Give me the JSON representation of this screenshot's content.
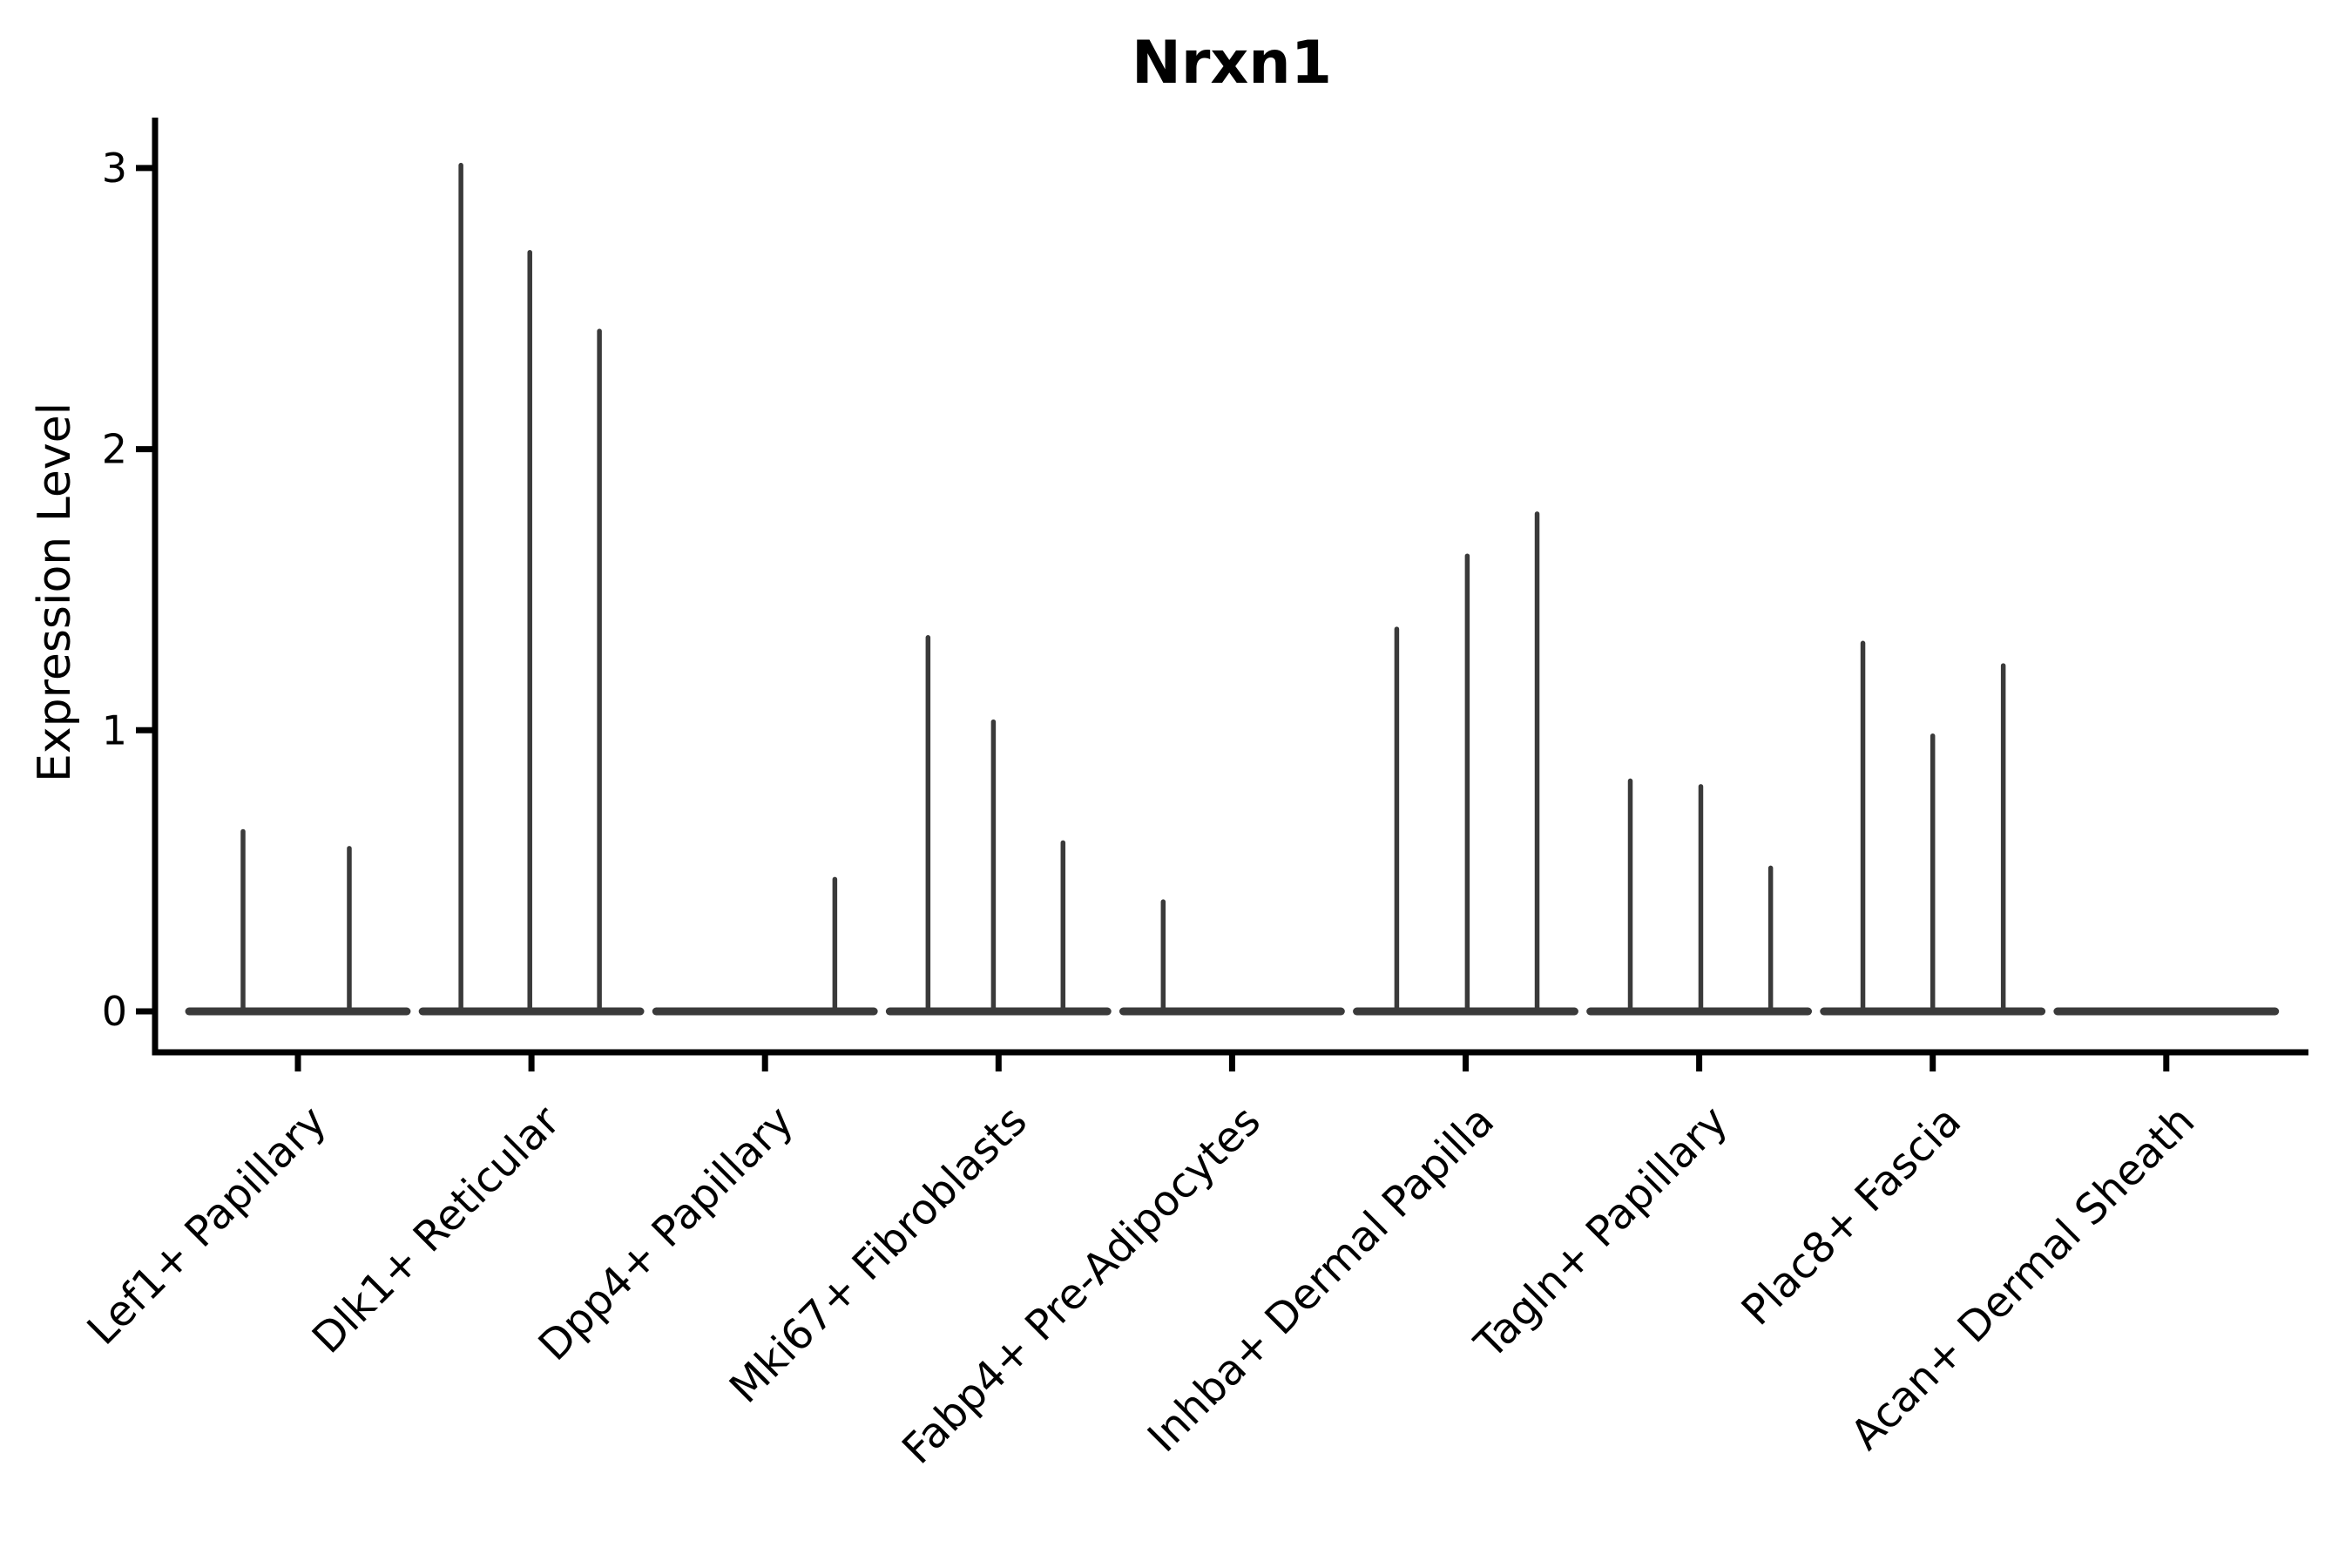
{
  "chart_data": {
    "type": "violin",
    "title": "Nrxn1",
    "ylabel": "Expression Level",
    "xlabel": "",
    "yticks": [
      0,
      1,
      2,
      3
    ],
    "ylim": [
      -0.15,
      3.2
    ],
    "grid": false,
    "legend": "none",
    "x_tick_label_rotation": 45,
    "categories": [
      "Lef1+ Papillary",
      "Dlk1+ Reticular",
      "Dpp4+ Papillary",
      "Mki67+ Fibroblasts",
      "Fabp4+ Pre-Adipocytes",
      "Inhba+ Dermal Papilla",
      "Tagln+ Papillary",
      "Plac8+ Fascia",
      "Acan+ Dermal Sheath"
    ],
    "groups": [
      {
        "category": "Lef1+ Papillary",
        "spikes": [
          {
            "x_offset": -0.235,
            "value": 0.64
          },
          {
            "x_offset": 0.22,
            "value": 0.58
          }
        ]
      },
      {
        "category": "Dlk1+ Reticular",
        "spikes": [
          {
            "x_offset": -0.302,
            "value": 3.01
          },
          {
            "x_offset": -0.007,
            "value": 2.7
          },
          {
            "x_offset": 0.291,
            "value": 2.42
          }
        ]
      },
      {
        "category": "Dpp4+ Papillary",
        "spikes": [
          {
            "x_offset": 0.299,
            "value": 0.47
          }
        ]
      },
      {
        "category": "Mki67+ Fibroblasts",
        "spikes": [
          {
            "x_offset": -0.302,
            "value": 1.33
          },
          {
            "x_offset": -0.022,
            "value": 1.03
          },
          {
            "x_offset": 0.276,
            "value": 0.6
          }
        ]
      },
      {
        "category": "Fabp4+ Pre-Adipocytes",
        "spikes": [
          {
            "x_offset": -0.295,
            "value": 0.39
          }
        ]
      },
      {
        "category": "Inhba+ Dermal Papilla",
        "spikes": [
          {
            "x_offset": -0.295,
            "value": 1.36
          },
          {
            "x_offset": 0.007,
            "value": 1.62
          },
          {
            "x_offset": 0.306,
            "value": 1.77
          }
        ]
      },
      {
        "category": "Tagln+ Papillary",
        "spikes": [
          {
            "x_offset": -0.295,
            "value": 0.82
          },
          {
            "x_offset": 0.007,
            "value": 0.8
          },
          {
            "x_offset": 0.306,
            "value": 0.51
          }
        ]
      },
      {
        "category": "Plac8+ Fascia",
        "spikes": [
          {
            "x_offset": -0.299,
            "value": 1.31
          },
          {
            "x_offset": 0.0,
            "value": 0.98
          },
          {
            "x_offset": 0.302,
            "value": 1.23
          }
        ]
      },
      {
        "category": "Acan+ Dermal Sheath",
        "spikes": []
      }
    ],
    "baseline_halfwidth": 0.466,
    "colors": {
      "line": "#3a3a3a",
      "axis": "#000000",
      "text": "#000000",
      "background": "#ffffff"
    }
  }
}
